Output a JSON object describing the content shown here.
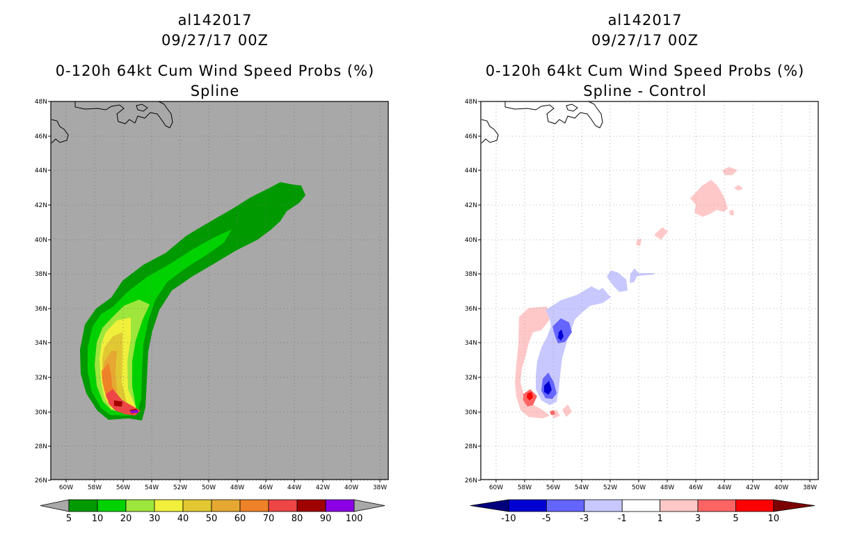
{
  "left": {
    "title_storm": "al142017",
    "title_time": "09/27/17 00Z",
    "title_product": "0-120h 64kt Cum Wind Speed Probs (%)",
    "title_sub": "Spline",
    "background": "#a8a8a8",
    "y_labels": [
      "48N",
      "46N",
      "44N",
      "42N",
      "40N",
      "38N",
      "36N",
      "34N",
      "32N",
      "30N",
      "28N",
      "26N"
    ],
    "x_labels": [
      "60W",
      "58W",
      "56W",
      "54W",
      "52W",
      "50W",
      "48W",
      "46W",
      "44W",
      "42W",
      "40W",
      "38W"
    ],
    "colorbar": {
      "labels": [
        "5",
        "10",
        "20",
        "30",
        "40",
        "50",
        "60",
        "70",
        "80",
        "90",
        "100"
      ],
      "colors": [
        "#009a00",
        "#00d200",
        "#9ee63c",
        "#f0f03c",
        "#e1c832",
        "#e6a832",
        "#ee8228",
        "#ee4646",
        "#a00000",
        "#8c00e6"
      ],
      "end_color": "#a8a8a8"
    },
    "contour_colors": {
      "c5": "#009a00",
      "c10": "#00d200",
      "c20": "#9ee63c",
      "c30": "#f0f03c",
      "c40": "#e1c832",
      "c50": "#e6a832",
      "c60": "#ee8228",
      "c70": "#ee4646",
      "c80": "#a00000",
      "c90": "#8c00e6"
    }
  },
  "right": {
    "title_storm": "al142017",
    "title_time": "09/27/17 00Z",
    "title_product": "0-120h 64kt Cum Wind Speed Probs (%)",
    "title_sub": "Spline - Control",
    "background": "#ffffff",
    "y_labels": [
      "48N",
      "46N",
      "44N",
      "42N",
      "40N",
      "38N",
      "36N",
      "34N",
      "32N",
      "30N",
      "28N",
      "26N"
    ],
    "x_labels": [
      "60W",
      "58W",
      "56W",
      "54W",
      "52W",
      "50W",
      "48W",
      "46W",
      "44W",
      "42W",
      "40W",
      "38W"
    ],
    "colorbar": {
      "labels": [
        "-10",
        "-5",
        "-3",
        "-1",
        "1",
        "3",
        "5",
        "10"
      ],
      "colors": [
        "#0000d2",
        "#6464ff",
        "#c8c8ff",
        "#ffffff",
        "#ffc8c8",
        "#ff6464",
        "#ff0000"
      ],
      "end_left": "#00007d",
      "end_right": "#7d0000"
    },
    "contour_colors": {
      "lightpink": "#ffc8c8",
      "pink": "#ff6464",
      "red": "#ff0000",
      "lightblue": "#c8c8ff",
      "blue": "#6464ff",
      "darkblue": "#0000d2"
    }
  }
}
